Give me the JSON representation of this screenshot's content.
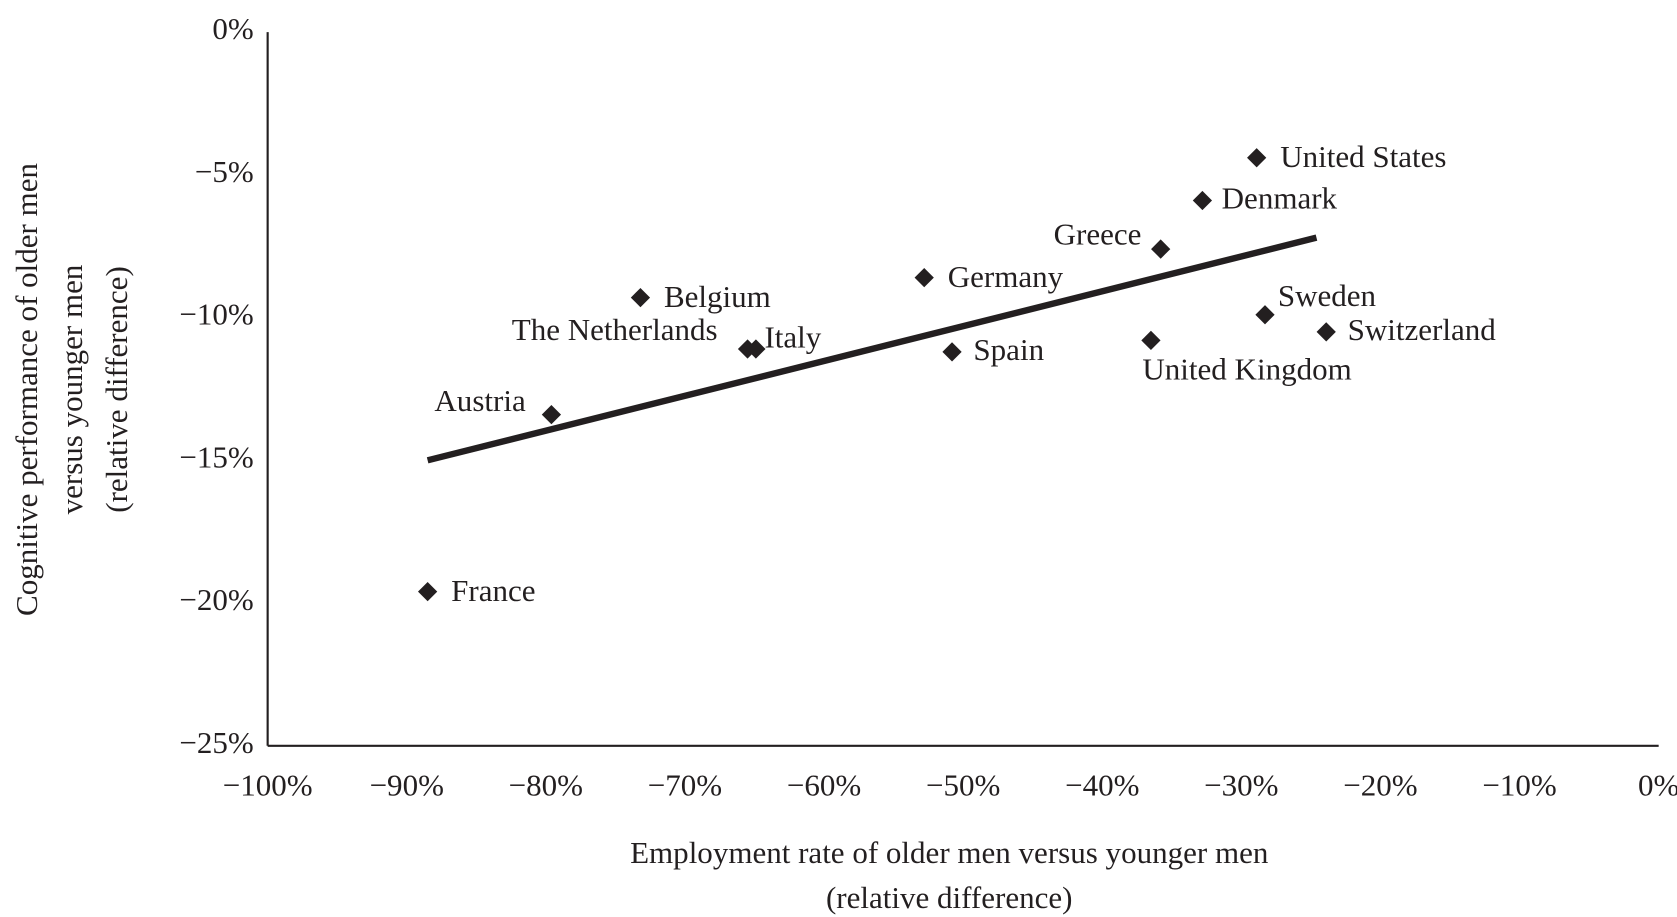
{
  "chart_data": {
    "type": "scatter",
    "x_label": [
      "Employment rate of older men versus younger men",
      "(relative difference)"
    ],
    "y_label": [
      "Cognitive performance of older men",
      "versus younger men",
      "(relative difference)"
    ],
    "labels": [
      "United States",
      "Denmark",
      "Greece",
      "Sweden",
      "Switzerland",
      "United Kingdom",
      "Germany",
      "Spain",
      "Belgium",
      "The Netherlands",
      "Italy",
      "Austria",
      "France"
    ],
    "x": [
      -28.9,
      -32.8,
      -35.8,
      -28.3,
      -23.9,
      -36.5,
      -52.8,
      -50.8,
      -73.2,
      -65.5,
      -64.9,
      -79.6,
      -88.5
    ],
    "values": [
      -4.4,
      -5.9,
      -7.6,
      -9.9,
      -10.5,
      -10.8,
      -8.6,
      -11.2,
      -9.3,
      -11.1,
      -11.1,
      -13.4,
      -19.6
    ],
    "color": "#231f20",
    "trend_line": {
      "x": [
        -88.5,
        -24.6
      ],
      "y": [
        -15,
        -7.2
      ]
    },
    "xlim": [
      -100,
      0
    ],
    "xticks": [
      {
        "value": -100,
        "label": "−100%"
      },
      {
        "value": -90,
        "label": "−90%"
      },
      {
        "value": -80,
        "label": "−80%"
      },
      {
        "value": -70,
        "label": "−70%"
      },
      {
        "value": -60,
        "label": "−60%"
      },
      {
        "value": -50,
        "label": "−50%"
      },
      {
        "value": -40,
        "label": "−40%"
      },
      {
        "value": -30,
        "label": "−30%"
      },
      {
        "value": -20,
        "label": "−20%"
      },
      {
        "value": -10,
        "label": "−10%"
      },
      {
        "value": 0,
        "label": "0%"
      }
    ],
    "ylim": [
      -25,
      0
    ],
    "yticks": [
      {
        "value": 0,
        "label": "0%"
      },
      {
        "value": -5,
        "label": "−5%"
      },
      {
        "value": -10,
        "label": "−10%"
      },
      {
        "value": -15,
        "label": "−15%"
      },
      {
        "value": -20,
        "label": "−20%"
      },
      {
        "value": -25,
        "label": "−25%"
      }
    ],
    "grid": false
  }
}
